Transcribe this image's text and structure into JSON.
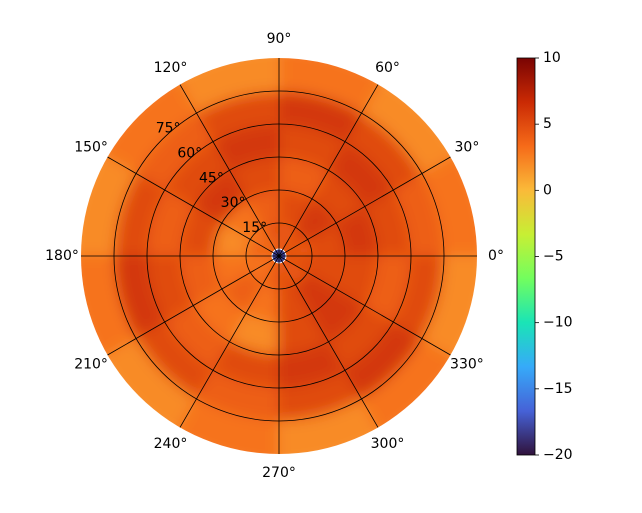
{
  "chart_data": {
    "type": "polar_heatmap",
    "theta_bins": [
      0,
      30,
      60,
      90,
      120,
      150,
      180,
      210,
      240,
      270,
      300,
      330,
      360
    ],
    "r_bins": [
      0,
      15,
      30,
      45,
      60,
      75,
      90
    ],
    "values": [
      [
        4,
        5,
        4,
        5,
        3,
        4,
        3,
        3,
        4,
        5,
        4,
        5
      ],
      [
        5,
        6,
        5,
        4,
        3,
        2,
        3,
        4,
        3,
        5,
        6,
        5
      ],
      [
        6,
        5,
        4,
        5,
        6,
        5,
        4,
        3,
        2,
        5,
        6,
        5
      ],
      [
        5,
        6,
        5,
        6,
        5,
        4,
        5,
        4,
        5,
        6,
        5,
        4
      ],
      [
        4,
        5,
        6,
        5,
        4,
        5,
        6,
        5,
        4,
        5,
        6,
        5
      ],
      [
        3,
        2,
        3,
        2,
        3,
        2,
        3,
        2,
        3,
        2,
        3,
        2
      ]
    ],
    "center_value": -18,
    "rlim": [
      0,
      90
    ],
    "thetaticks": [
      {
        "value": 0,
        "label": "0°"
      },
      {
        "value": 30,
        "label": "30°"
      },
      {
        "value": 60,
        "label": "60°"
      },
      {
        "value": 90,
        "label": "90°"
      },
      {
        "value": 120,
        "label": "120°"
      },
      {
        "value": 150,
        "label": "150°"
      },
      {
        "value": 180,
        "label": "180°"
      },
      {
        "value": 210,
        "label": "210°"
      },
      {
        "value": 240,
        "label": "240°"
      },
      {
        "value": 270,
        "label": "270°"
      },
      {
        "value": 300,
        "label": "300°"
      },
      {
        "value": 330,
        "label": "330°"
      }
    ],
    "rticks": [
      {
        "value": 15,
        "label": "15°"
      },
      {
        "value": 30,
        "label": "30°"
      },
      {
        "value": 45,
        "label": "45°"
      },
      {
        "value": 60,
        "label": "60°"
      },
      {
        "value": 75,
        "label": "75°"
      }
    ],
    "clim": [
      -20,
      10
    ],
    "cticks": [
      {
        "value": -20,
        "label": "−20"
      },
      {
        "value": -15,
        "label": "−15"
      },
      {
        "value": -10,
        "label": "−10"
      },
      {
        "value": -5,
        "label": "−5"
      },
      0,
      5,
      10
    ],
    "colormap": [
      "#30123b",
      "#4662d7",
      "#36aaf9",
      "#1ae4b6",
      "#72fe5e",
      "#c7ef34",
      "#faba39",
      "#f66b19",
      "#ca2a04",
      "#7a0403"
    ]
  }
}
